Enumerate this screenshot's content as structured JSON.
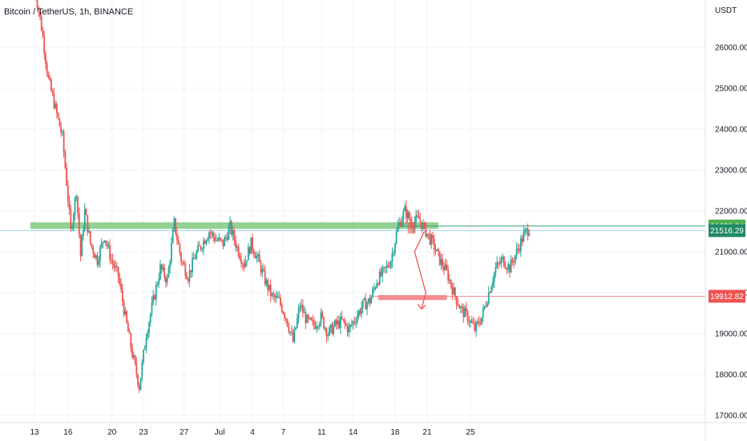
{
  "header": {
    "title": "Bitcoin / TetherUS, 1h, BINANCE"
  },
  "colors": {
    "bull": "#26a69a",
    "bear": "#ef5350",
    "resistance_zone": "#6cc16c",
    "target_zone": "#f7787d",
    "price_line": "#3d9b73",
    "grid": "#f0f3fa",
    "axis_text": "#131722"
  },
  "chart_data": {
    "type": "candlestick",
    "title": "Bitcoin / TetherUS, 1h, BINANCE",
    "y_unit_label": "USDT",
    "ylim": [
      16800,
      27500
    ],
    "x_ticks": [
      "13",
      "16",
      "20",
      "23",
      "27",
      "Jul",
      "4",
      "7",
      "11",
      "14",
      "18",
      "21",
      "25"
    ],
    "y_ticks": [
      "26000.00",
      "25000.00",
      "24000.00",
      "23000.00",
      "22000.00",
      "21000.00",
      "20000.00",
      "19000.00",
      "18000.00",
      "17000.00"
    ],
    "price_path": [
      [
        0,
        27500
      ],
      [
        0.5,
        26500
      ],
      [
        1,
        25200
      ],
      [
        1.5,
        24500
      ],
      [
        2,
        23800
      ],
      [
        2.3,
        22700
      ],
      [
        2.6,
        21500
      ],
      [
        3,
        22500
      ],
      [
        3.3,
        20900
      ],
      [
        3.6,
        22000
      ],
      [
        4,
        21200
      ],
      [
        4.5,
        20800
      ],
      [
        5,
        21400
      ],
      [
        5.5,
        20800
      ],
      [
        6,
        20400
      ],
      [
        6.5,
        19400
      ],
      [
        7,
        18500
      ],
      [
        7.5,
        17700
      ],
      [
        8,
        19000
      ],
      [
        8.5,
        19800
      ],
      [
        9,
        20600
      ],
      [
        9.5,
        20300
      ],
      [
        10,
        21700
      ],
      [
        10.5,
        20800
      ],
      [
        11,
        20400
      ],
      [
        11.5,
        20900
      ],
      [
        12,
        21200
      ],
      [
        12.5,
        21500
      ],
      [
        13,
        21300
      ],
      [
        13.5,
        21200
      ],
      [
        14,
        21600
      ],
      [
        14.5,
        21100
      ],
      [
        15,
        20700
      ],
      [
        15.5,
        21200
      ],
      [
        16,
        20800
      ],
      [
        16.5,
        20300
      ],
      [
        17,
        19900
      ],
      [
        17.5,
        19800
      ],
      [
        18,
        19400
      ],
      [
        18.5,
        18800
      ],
      [
        19,
        19700
      ],
      [
        19.5,
        19300
      ],
      [
        20,
        19200
      ],
      [
        20.5,
        19400
      ],
      [
        21,
        19000
      ],
      [
        21.5,
        19200
      ],
      [
        22,
        19300
      ],
      [
        22.5,
        19100
      ],
      [
        23,
        19400
      ],
      [
        23.5,
        19700
      ],
      [
        24,
        19800
      ],
      [
        24.5,
        20300
      ],
      [
        25,
        20500
      ],
      [
        25.5,
        20800
      ],
      [
        26,
        21600
      ],
      [
        26.5,
        22000
      ],
      [
        27,
        21700
      ],
      [
        27.5,
        21800
      ],
      [
        28,
        21500
      ],
      [
        28.5,
        21200
      ],
      [
        29,
        20800
      ],
      [
        29.5,
        20500
      ],
      [
        30,
        20000
      ],
      [
        30.5,
        19600
      ],
      [
        31,
        19400
      ],
      [
        31.5,
        19100
      ],
      [
        32,
        19400
      ],
      [
        32.5,
        20000
      ],
      [
        33,
        20600
      ],
      [
        33.5,
        20800
      ],
      [
        34,
        20600
      ],
      [
        34.5,
        21000
      ],
      [
        35,
        21400
      ],
      [
        35.5,
        21630
      ]
    ],
    "x_domain": [
      0,
      48
    ],
    "x_tick_positions": [
      0,
      2.4,
      5.55,
      7.8,
      10.7,
      13.25,
      15.6,
      17.8,
      20.55,
      22.8,
      25.8,
      28.1,
      31.2
    ],
    "levels": {
      "resistance_zone": {
        "low": 21560,
        "high": 21720,
        "x_start": -0.3,
        "x_end": 28.9
      },
      "target_zone": {
        "low": 19820,
        "high": 19940,
        "x_start": 24.6,
        "x_end": 29.5
      },
      "resistance_line_price": 21630.64,
      "current_price_line": 21516.29,
      "target_line_price": 19912.82
    },
    "projection_path": [
      [
        27.9,
        21500
      ],
      [
        27.2,
        21000
      ],
      [
        28.0,
        20000
      ],
      [
        27.7,
        19600
      ]
    ],
    "price_badges": [
      {
        "value": "21630.64",
        "price": 21630.64,
        "color": "#4caf50"
      },
      {
        "value": "21516.29",
        "price": 21516.29,
        "color": "#1f8a63"
      },
      {
        "value": "19912.82",
        "price": 19912.82,
        "color": "#ef5350"
      }
    ]
  }
}
